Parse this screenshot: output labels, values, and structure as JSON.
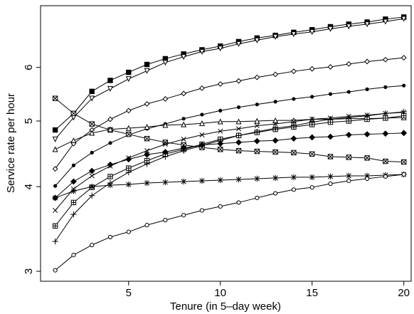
{
  "chart_data": {
    "type": "line",
    "x_label": "Tenure (in 5–day week)",
    "y_label": "Service rate per hour",
    "x": [
      1,
      2,
      3,
      4,
      5,
      6,
      7,
      8,
      9,
      10,
      11,
      12,
      13,
      14,
      15,
      16,
      17,
      18,
      19,
      20
    ],
    "xlim": [
      0.2,
      20.4
    ],
    "xticks": [
      5,
      10,
      15,
      20
    ],
    "ylim": [
      2.9,
      7.4
    ],
    "yticks": [
      3,
      4,
      5,
      6
    ],
    "log_y": true,
    "series": [
      {
        "marker": "square-filled",
        "color": "#000000",
        "values": [
          4.85,
          5.13,
          5.53,
          5.74,
          5.9,
          6.06,
          6.18,
          6.28,
          6.37,
          6.45,
          6.55,
          6.63,
          6.69,
          6.76,
          6.82,
          6.89,
          6.95,
          7.0,
          7.07,
          7.12
        ]
      },
      {
        "marker": "triangle-down-open",
        "color": "#000000",
        "values": [
          4.7,
          5.06,
          5.4,
          5.58,
          5.77,
          5.93,
          6.1,
          6.22,
          6.33,
          6.4,
          6.5,
          6.58,
          6.66,
          6.72,
          6.77,
          6.84,
          6.9,
          6.95,
          7.01,
          7.08
        ]
      },
      {
        "marker": "diamond-open",
        "color": "#000000",
        "values": [
          4.25,
          4.63,
          4.85,
          5.03,
          5.18,
          5.3,
          5.39,
          5.49,
          5.59,
          5.67,
          5.73,
          5.8,
          5.86,
          5.92,
          5.97,
          6.01,
          6.07,
          6.12,
          6.16,
          6.2
        ]
      },
      {
        "marker": "circle-filled",
        "color": "#000000",
        "values": [
          4.01,
          4.3,
          4.49,
          4.64,
          4.77,
          4.87,
          4.95,
          5.04,
          5.11,
          5.18,
          5.24,
          5.29,
          5.34,
          5.39,
          5.43,
          5.48,
          5.52,
          5.57,
          5.61,
          5.64
        ]
      },
      {
        "marker": "square-x",
        "color": "#000000",
        "values": [
          5.4,
          5.13,
          4.95,
          4.85,
          4.78,
          4.71,
          4.65,
          4.61,
          4.57,
          4.54,
          4.52,
          4.51,
          4.5,
          4.49,
          4.47,
          4.43,
          4.42,
          4.41,
          4.36,
          4.35
        ]
      },
      {
        "marker": "triangle-open",
        "color": "#000000",
        "values": [
          4.54,
          4.68,
          4.8,
          4.86,
          4.88,
          4.9,
          4.93,
          4.94,
          4.96,
          4.99,
          4.99,
          5.0,
          5.01,
          5.01,
          5.03,
          5.03,
          5.04,
          5.04,
          5.05,
          5.06
        ]
      },
      {
        "marker": "cross",
        "color": "#000000",
        "values": [
          3.69,
          3.97,
          4.15,
          4.29,
          4.41,
          4.52,
          4.62,
          4.7,
          4.77,
          4.83,
          4.87,
          4.92,
          4.95,
          4.99,
          5.03,
          5.05,
          5.08,
          5.1,
          5.13,
          5.15
        ]
      },
      {
        "marker": "square-plus",
        "color": "#000000",
        "values": [
          3.5,
          3.79,
          3.99,
          4.14,
          4.26,
          4.37,
          4.47,
          4.54,
          4.62,
          4.7,
          4.76,
          4.81,
          4.86,
          4.9,
          4.94,
          4.98,
          5.0,
          5.03,
          5.05,
          5.09
        ]
      },
      {
        "marker": "plus",
        "color": "#000000",
        "values": [
          3.32,
          3.64,
          3.88,
          4.05,
          4.2,
          4.32,
          4.43,
          4.52,
          4.6,
          4.68,
          4.76,
          4.82,
          4.88,
          4.92,
          4.98,
          5.03,
          5.06,
          5.09,
          5.13,
          5.16
        ]
      },
      {
        "marker": "diamond-filled",
        "color": "#000000",
        "values": [
          3.85,
          4.07,
          4.22,
          4.31,
          4.39,
          4.46,
          4.5,
          4.56,
          4.61,
          4.63,
          4.65,
          4.67,
          4.68,
          4.71,
          4.73,
          4.74,
          4.77,
          4.78,
          4.79,
          4.8
        ]
      },
      {
        "marker": "asterisk",
        "color": "#000000",
        "values": [
          3.85,
          3.94,
          4.0,
          4.02,
          4.03,
          4.05,
          4.06,
          4.07,
          4.08,
          4.09,
          4.1,
          4.11,
          4.12,
          4.13,
          4.13,
          4.14,
          4.15,
          4.15,
          4.16,
          4.17
        ]
      },
      {
        "marker": "circle-open",
        "color": "#000000",
        "values": [
          3.01,
          3.17,
          3.28,
          3.37,
          3.43,
          3.51,
          3.57,
          3.63,
          3.69,
          3.74,
          3.79,
          3.85,
          3.91,
          3.96,
          3.99,
          4.04,
          4.08,
          4.11,
          4.14,
          4.17
        ]
      }
    ]
  }
}
